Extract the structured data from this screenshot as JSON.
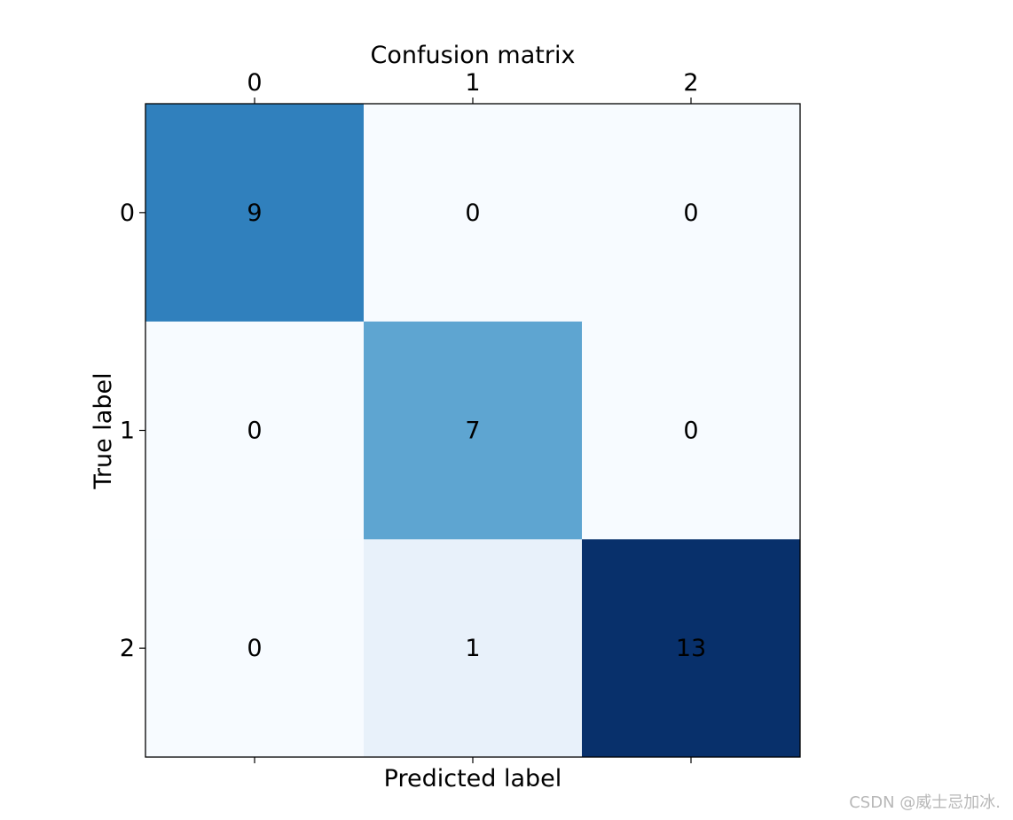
{
  "chart_data": {
    "type": "heatmap",
    "title": "Confusion matrix",
    "xlabel": "Predicted label",
    "ylabel": "True label",
    "x_categories": [
      "0",
      "1",
      "2"
    ],
    "y_categories": [
      "0",
      "1",
      "2"
    ],
    "values": [
      [
        9,
        0,
        0
      ],
      [
        0,
        7,
        0
      ],
      [
        0,
        1,
        13
      ]
    ],
    "colormap": "Blues",
    "vmin": 0,
    "vmax": 13,
    "colors": {
      "low": "#f7fbff",
      "high": "#08306b",
      "text": "#000000",
      "axis": "#000000"
    }
  },
  "watermark": "CSDN @威士忌加冰."
}
